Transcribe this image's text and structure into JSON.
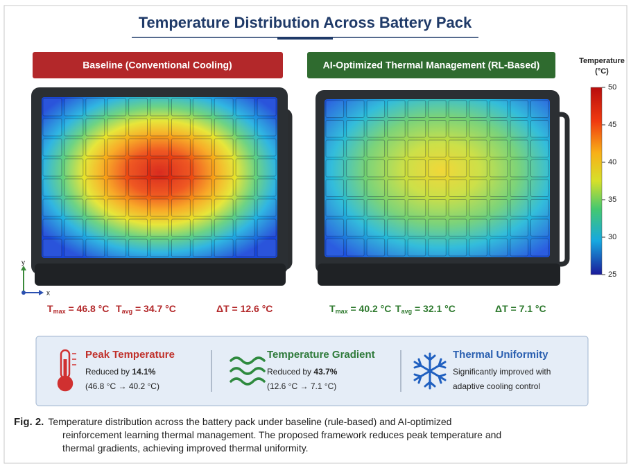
{
  "title": "Temperature Distribution Across Battery Pack",
  "panels": [
    {
      "label": "Baseline (Conventional Cooling)",
      "stats": [
        {
          "symbol": "T",
          "subscript": "max",
          "text": " = 46.8 °C"
        },
        {
          "symbol": "T",
          "subscript": "avg",
          "text": " = 34.7 °C"
        },
        {
          "text": "ΔT = 12.6 °C"
        }
      ]
    },
    {
      "label": "AI-Optimized Thermal Management (RL-Based)",
      "stats": [
        {
          "symbol": "T",
          "subscript": "max",
          "text": " = 40.2 °C"
        },
        {
          "symbol": "T",
          "subscript": "avg",
          "text": " = 32.1 °C"
        },
        {
          "text": "ΔT = 7.1 °C"
        }
      ]
    }
  ],
  "axes": {
    "x": "x",
    "y": "y"
  },
  "colorbar": {
    "title": [
      "Temperature",
      "(°C)"
    ],
    "range": [
      25,
      50
    ],
    "ticks": [
      25,
      30,
      35,
      40,
      45,
      50
    ]
  },
  "summary": [
    {
      "title": "Peak Temperature",
      "lines": [
        {
          "text": "Reduced by ",
          "emphasis": "14.1%"
        },
        {
          "text": "(46.8 °C → 40.2 °C)"
        }
      ]
    },
    {
      "title": "Temperature Gradient",
      "lines": [
        {
          "text": "Reduced by ",
          "emphasis": "43.7%"
        },
        {
          "text": "(12.6 °C → 7.1 °C)"
        }
      ]
    },
    {
      "title": "Thermal Uniformity",
      "lines": [
        {
          "text": "Significantly improved with"
        },
        {
          "text": "adaptive cooling control"
        }
      ]
    }
  ],
  "caption": {
    "label": "Fig. 2.",
    "lines": [
      "Temperature distribution across the battery pack under baseline (rule-based) and AI-optimized",
      "reinforcement learning thermal management. The proposed framework reduces peak temperature and",
      "thermal gradients, achieving improved thermal uniformity."
    ]
  }
}
